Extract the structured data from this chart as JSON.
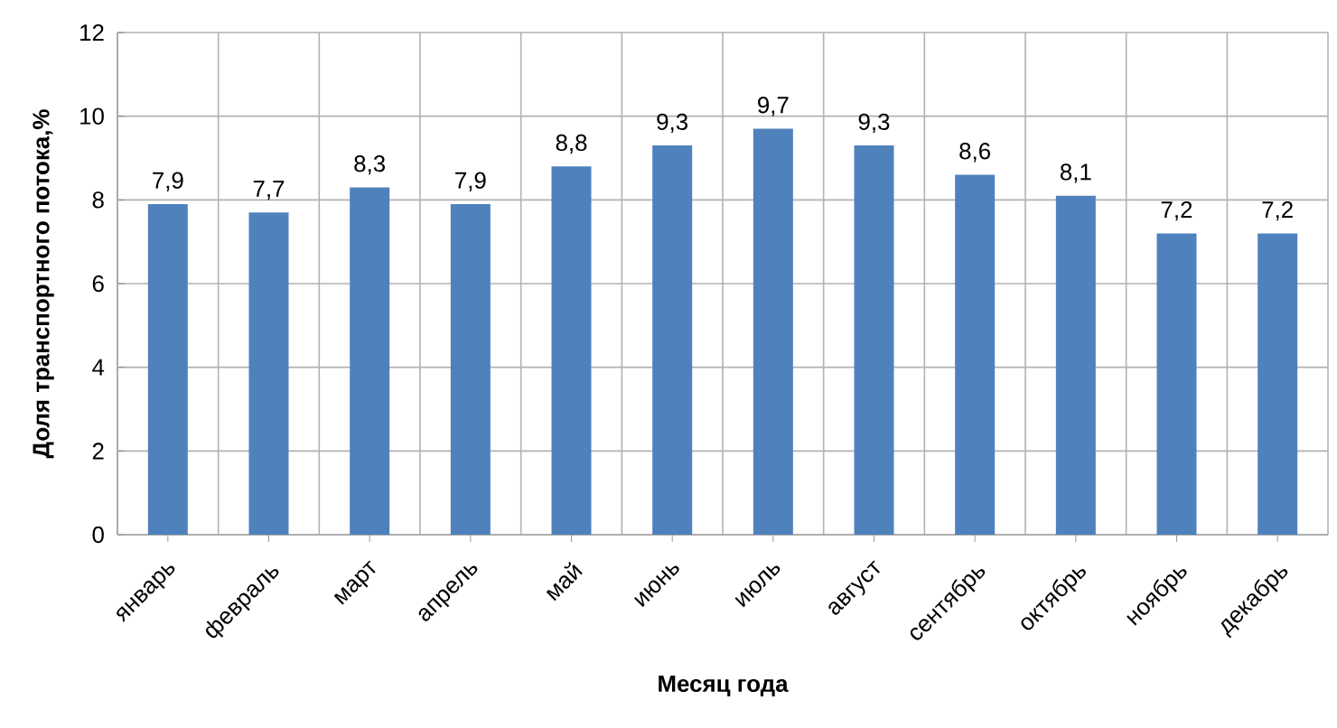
{
  "chart_data": {
    "type": "bar",
    "xlabel": "Месяц года",
    "ylabel": "Доля транспортного  потока,%",
    "categories": [
      "январь",
      "февраль",
      "март",
      "апрель",
      "май",
      "июнь",
      "июль",
      "август",
      "сентябрь",
      "октябрь",
      "ноябрь",
      "декабрь"
    ],
    "values": [
      7.9,
      7.7,
      8.3,
      7.9,
      8.8,
      9.3,
      9.7,
      9.3,
      8.6,
      8.1,
      7.2,
      7.2
    ],
    "value_labels": [
      "7,9",
      "7,7",
      "8,3",
      "7,9",
      "8,8",
      "9,3",
      "9,7",
      "9,3",
      "8,6",
      "8,1",
      "7,2",
      "7,2"
    ],
    "color": "#4f81bd",
    "ylim": [
      0,
      12
    ],
    "yticks": [
      0,
      2,
      4,
      6,
      8,
      10,
      12
    ],
    "grid": true
  }
}
